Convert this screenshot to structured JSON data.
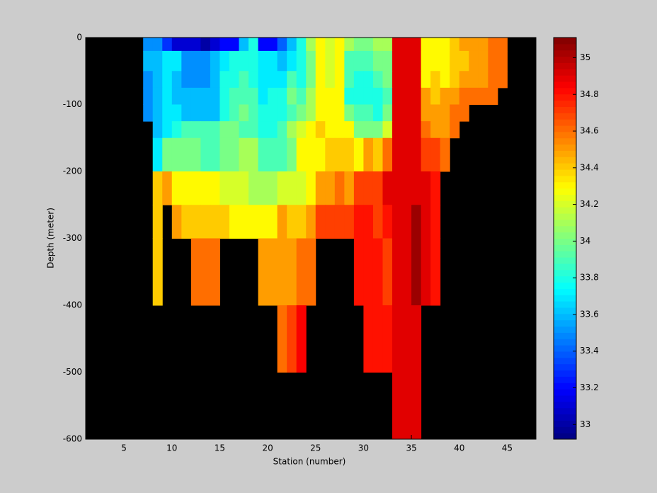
{
  "chart_data": {
    "type": "heatmap",
    "xlabel": "Station (number)",
    "ylabel": "Depth (meter)",
    "xlim": [
      1,
      48
    ],
    "ylim": [
      -600,
      0
    ],
    "xticks": [
      5,
      10,
      15,
      20,
      25,
      30,
      35,
      40,
      45
    ],
    "yticks": [
      0,
      -100,
      -200,
      -300,
      -400,
      -500,
      -600
    ],
    "x_edges": [
      7,
      8,
      9,
      10,
      11,
      12,
      13,
      14,
      15,
      16,
      17,
      18,
      19,
      20,
      21,
      22,
      23,
      24,
      25,
      26,
      27,
      28,
      29,
      30,
      31,
      32,
      33,
      34,
      35,
      36,
      37,
      38,
      39,
      40,
      41,
      42,
      43,
      44,
      45
    ],
    "y_edges": [
      0,
      -20,
      -50,
      -75,
      -100,
      -125,
      -150,
      -200,
      -250,
      -300,
      -400,
      -500,
      -600
    ],
    "colormap": "jet",
    "background": "#000000",
    "clim": [
      32.92,
      35.11
    ],
    "colorbar_ticks": [
      33,
      33.2,
      33.4,
      33.6,
      33.8,
      34,
      34.2,
      34.4,
      34.6,
      34.8,
      35
    ],
    "values": [
      [
        33.5,
        33.5,
        33.3,
        33.1,
        33.1,
        33.1,
        33.0,
        33.1,
        33.2,
        33.2,
        33.6,
        33.8,
        33.2,
        33.2,
        33.4,
        33.6,
        33.8,
        34.1,
        34.3,
        34.2,
        34.3,
        34.1,
        34.0,
        34.0,
        34.1,
        34.1,
        34.9,
        34.9,
        34.9,
        34.3,
        34.3,
        34.3,
        34.4,
        34.5,
        34.5,
        34.5,
        34.6,
        34.6
      ],
      [
        33.6,
        33.6,
        33.7,
        33.7,
        33.5,
        33.5,
        33.5,
        33.6,
        33.7,
        33.8,
        33.8,
        33.8,
        33.7,
        33.7,
        33.6,
        33.7,
        33.8,
        34.0,
        34.3,
        34.2,
        34.3,
        33.9,
        33.9,
        33.9,
        34.0,
        34.0,
        34.9,
        34.9,
        34.9,
        34.3,
        34.3,
        34.3,
        34.4,
        34.4,
        34.5,
        34.5,
        34.6,
        34.6
      ],
      [
        33.5,
        33.6,
        33.7,
        33.6,
        33.5,
        33.5,
        33.5,
        33.6,
        33.8,
        33.8,
        33.9,
        33.8,
        33.7,
        33.7,
        33.7,
        33.9,
        33.8,
        34.0,
        34.3,
        34.2,
        34.3,
        33.9,
        33.8,
        33.8,
        33.9,
        34.0,
        34.9,
        34.9,
        34.9,
        34.3,
        34.4,
        34.3,
        34.4,
        34.5,
        34.5,
        34.5,
        34.6,
        34.6
      ],
      [
        33.5,
        33.6,
        33.7,
        33.6,
        33.6,
        33.6,
        33.6,
        33.6,
        33.8,
        33.9,
        33.9,
        33.9,
        33.7,
        33.8,
        33.8,
        34.0,
        33.9,
        34.1,
        34.3,
        34.3,
        34.3,
        33.8,
        33.8,
        33.8,
        33.8,
        33.9,
        34.9,
        34.9,
        34.9,
        34.5,
        34.4,
        34.5,
        34.5,
        34.6,
        34.6,
        34.6,
        34.6,
        null
      ],
      [
        33.5,
        33.6,
        33.7,
        33.7,
        33.6,
        33.6,
        33.6,
        33.6,
        33.8,
        33.9,
        34.0,
        33.9,
        33.8,
        33.8,
        33.8,
        33.9,
        34.0,
        34.1,
        34.3,
        34.3,
        34.3,
        34.0,
        33.9,
        33.9,
        33.8,
        34.0,
        34.9,
        34.9,
        34.9,
        34.5,
        34.5,
        34.5,
        34.6,
        34.6,
        null,
        null,
        null,
        null
      ],
      [
        null,
        33.6,
        33.7,
        33.8,
        33.9,
        33.9,
        33.9,
        33.9,
        34.0,
        34.0,
        33.9,
        33.9,
        33.8,
        33.8,
        33.9,
        34.1,
        34.2,
        34.3,
        34.4,
        34.3,
        34.3,
        34.3,
        34.0,
        34.0,
        34.0,
        34.2,
        34.9,
        34.9,
        34.9,
        34.6,
        34.5,
        34.5,
        34.6,
        null,
        null,
        null,
        null,
        null
      ],
      [
        null,
        33.7,
        34.0,
        34.0,
        34.0,
        34.0,
        33.9,
        33.9,
        34.0,
        34.0,
        34.1,
        34.1,
        33.9,
        33.9,
        33.9,
        34.0,
        34.3,
        34.3,
        34.3,
        34.4,
        34.4,
        34.4,
        34.3,
        34.5,
        34.4,
        34.6,
        34.9,
        34.9,
        34.9,
        34.7,
        34.7,
        34.6,
        null,
        null,
        null,
        null,
        null,
        null
      ],
      [
        null,
        34.4,
        34.5,
        34.3,
        34.3,
        34.3,
        34.3,
        34.3,
        34.2,
        34.2,
        34.2,
        34.1,
        34.1,
        34.1,
        34.2,
        34.2,
        34.2,
        34.3,
        34.5,
        34.5,
        34.6,
        34.5,
        34.7,
        34.7,
        34.7,
        34.9,
        34.9,
        34.9,
        34.9,
        34.9,
        34.8,
        null,
        null,
        null,
        null,
        null,
        null,
        null
      ],
      [
        null,
        34.4,
        null,
        34.5,
        34.4,
        34.4,
        34.4,
        34.4,
        34.4,
        34.3,
        34.3,
        34.3,
        34.3,
        34.3,
        34.5,
        34.4,
        34.4,
        34.5,
        34.7,
        34.7,
        34.7,
        34.7,
        34.8,
        34.8,
        34.7,
        34.8,
        34.9,
        34.9,
        35.05,
        34.9,
        34.8,
        null,
        null,
        null,
        null,
        null,
        null,
        null
      ],
      [
        null,
        34.4,
        null,
        null,
        null,
        34.6,
        34.6,
        34.6,
        null,
        null,
        null,
        null,
        34.5,
        34.5,
        34.5,
        34.5,
        34.6,
        34.6,
        null,
        null,
        null,
        null,
        34.8,
        34.8,
        34.8,
        34.7,
        34.9,
        34.9,
        35.05,
        34.9,
        34.8,
        null,
        null,
        null,
        null,
        null,
        null,
        null
      ],
      [
        null,
        null,
        null,
        null,
        null,
        null,
        null,
        null,
        null,
        null,
        null,
        null,
        null,
        null,
        34.6,
        34.7,
        34.85,
        null,
        null,
        null,
        null,
        null,
        null,
        34.8,
        34.8,
        34.8,
        34.9,
        34.9,
        34.9,
        null,
        null,
        null,
        null,
        null,
        null,
        null,
        null,
        null
      ],
      [
        null,
        null,
        null,
        null,
        null,
        null,
        null,
        null,
        null,
        null,
        null,
        null,
        null,
        null,
        null,
        null,
        null,
        null,
        null,
        null,
        null,
        null,
        null,
        null,
        null,
        null,
        34.9,
        34.9,
        34.9,
        null,
        null,
        null,
        null,
        null,
        null,
        null,
        null,
        null
      ]
    ]
  }
}
